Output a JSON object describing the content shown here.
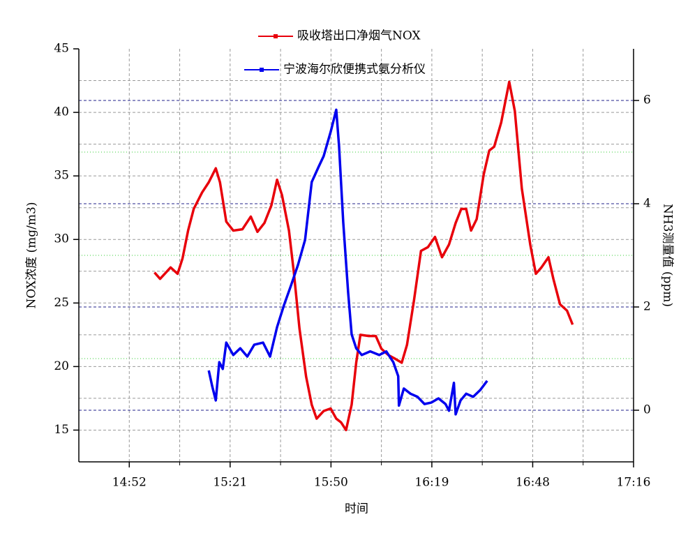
{
  "chart_data": {
    "type": "line",
    "xlabel": "时间",
    "ylabel": "NOX浓度 (mg/m3)",
    "y2label": "NH3测量值 (ppm)",
    "xlim": [
      878.4,
      1036.8
    ],
    "xticks": [
      {
        "value": 892.8,
        "label": "14:52"
      },
      {
        "value": 921.6,
        "label": "15:21"
      },
      {
        "value": 950.4,
        "label": "15:50"
      },
      {
        "value": 979.2,
        "label": "16:19"
      },
      {
        "value": 1008,
        "label": "16:48"
      },
      {
        "value": 1036.8,
        "label": "17:16"
      }
    ],
    "ylim": [
      12.5,
      45
    ],
    "yticks": [
      15,
      20,
      25,
      30,
      35,
      40,
      45
    ],
    "y2lim": [
      -1,
      7
    ],
    "y2ticks": [
      0,
      2,
      4,
      6
    ],
    "grid": true,
    "legend": "top",
    "series": [
      {
        "name": "吸收塔出口净烟气NOX",
        "color": "#e8000b",
        "x": [
          900.0,
          901.6,
          903.6,
          904.6,
          906.6,
          908.0,
          909.6,
          911.2,
          913.6,
          915.5,
          917.5,
          918.7,
          920.5,
          922.5,
          925.1,
          927.5,
          929.4,
          931.4,
          933.4,
          935.0,
          936.4,
          938.4,
          939.8,
          941.4,
          943.3,
          944.9,
          946.3,
          948.3,
          950.3,
          951.9,
          953.3,
          954.7,
          956.3,
          957.6,
          958.8,
          961.2,
          963.2,
          964.8,
          966.8,
          968.8,
          970.6,
          972.1,
          974.1,
          976.1,
          978.1,
          980.1,
          982.1,
          984.1,
          986.0,
          987.6,
          989.0,
          990.4,
          992.0,
          994.0,
          995.6,
          997.0,
          999.0,
          1001.3,
          1002.9,
          1004.9,
          1007.3,
          1008.9,
          1010.5,
          1012.5,
          1013.9,
          1015.8,
          1017.8,
          1019.4
        ],
        "values": [
          27.4,
          26.9,
          27.5,
          27.8,
          27.3,
          28.5,
          30.7,
          32.4,
          33.7,
          34.5,
          35.6,
          34.5,
          31.4,
          30.7,
          30.8,
          31.8,
          30.6,
          31.3,
          32.7,
          34.7,
          33.5,
          30.7,
          27.4,
          23.0,
          19.2,
          17.0,
          15.9,
          16.5,
          16.7,
          15.9,
          15.6,
          15.0,
          17.0,
          20.3,
          22.5,
          22.4,
          22.4,
          21.4,
          20.9,
          20.6,
          20.3,
          21.7,
          25.2,
          29.1,
          29.4,
          30.2,
          28.6,
          29.6,
          31.3,
          32.4,
          32.4,
          30.7,
          31.6,
          35.1,
          37.0,
          37.3,
          39.2,
          42.4,
          40.1,
          34.0,
          29.6,
          27.3,
          27.8,
          28.6,
          26.9,
          24.9,
          24.4,
          23.3
        ]
      },
      {
        "name": "宁波海尔欣便携式氨分析仪",
        "color": "#0000ee",
        "axis": "y2",
        "x": [
          915.5,
          916.5,
          917.5,
          918.5,
          919.5,
          920.5,
          922.5,
          924.5,
          926.5,
          928.5,
          931.0,
          933.0,
          935.0,
          937.0,
          939.0,
          941.0,
          943.0,
          944.9,
          946.9,
          948.3,
          950.3,
          951.9,
          952.7,
          953.9,
          955.3,
          956.3,
          957.6,
          959.2,
          961.6,
          964.2,
          966.2,
          968.2,
          969.6,
          969.8,
          971.2,
          973.1,
          975.1,
          977.1,
          979.1,
          981.1,
          983.1,
          984.1,
          985.5,
          986.0,
          987.4,
          989.0,
          991.0,
          993.0,
          995.0
        ],
        "values": [
          0.77,
          0.46,
          0.19,
          0.93,
          0.8,
          1.31,
          1.07,
          1.2,
          1.04,
          1.27,
          1.31,
          1.04,
          1.61,
          2.04,
          2.42,
          2.82,
          3.3,
          4.42,
          4.72,
          4.92,
          5.39,
          5.82,
          5.12,
          3.64,
          2.28,
          1.47,
          1.2,
          1.07,
          1.14,
          1.07,
          1.14,
          0.93,
          0.66,
          0.09,
          0.42,
          0.32,
          0.26,
          0.12,
          0.15,
          0.23,
          0.12,
          -0.01,
          0.53,
          -0.08,
          0.19,
          0.32,
          0.26,
          0.39,
          0.57
        ]
      }
    ]
  }
}
